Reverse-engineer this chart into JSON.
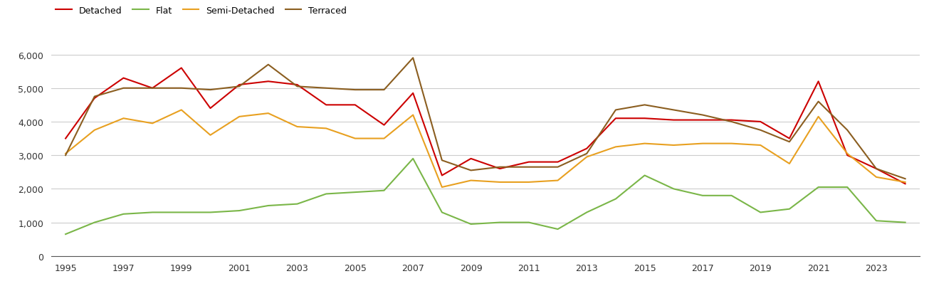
{
  "years": [
    1995,
    1996,
    1997,
    1998,
    1999,
    2000,
    2001,
    2002,
    2003,
    2004,
    2005,
    2006,
    2007,
    2008,
    2009,
    2010,
    2011,
    2012,
    2013,
    2014,
    2015,
    2016,
    2017,
    2018,
    2019,
    2020,
    2021,
    2022,
    2023,
    2024
  ],
  "detached": [
    3500,
    4700,
    5300,
    5000,
    5600,
    4400,
    5100,
    5200,
    5100,
    4500,
    4500,
    3900,
    4850,
    2400,
    2900,
    2600,
    2800,
    2800,
    3200,
    4100,
    4100,
    4050,
    4050,
    4050,
    4000,
    3500,
    5200,
    3000,
    2600,
    2150
  ],
  "flat": [
    650,
    1000,
    1250,
    1300,
    1300,
    1300,
    1350,
    1500,
    1550,
    1850,
    1900,
    1950,
    2900,
    1300,
    950,
    1000,
    1000,
    800,
    1300,
    1700,
    2400,
    2000,
    1800,
    1800,
    1300,
    1400,
    2050,
    2050,
    1050,
    1000
  ],
  "semi_detached": [
    3050,
    3750,
    4100,
    3950,
    4350,
    3600,
    4150,
    4250,
    3850,
    3800,
    3500,
    3500,
    4200,
    2050,
    2250,
    2200,
    2200,
    2250,
    2950,
    3250,
    3350,
    3300,
    3350,
    3350,
    3300,
    2750,
    4150,
    3050,
    2350,
    2200
  ],
  "terraced": [
    3000,
    4750,
    5000,
    5000,
    5000,
    4950,
    5050,
    5700,
    5050,
    5000,
    4950,
    4950,
    5900,
    2850,
    2550,
    2650,
    2650,
    2650,
    3050,
    4350,
    4500,
    4350,
    4200,
    4000,
    3750,
    3400,
    4600,
    3750,
    2600,
    2300
  ],
  "colors": {
    "detached": "#cc0000",
    "flat": "#7ab648",
    "semi_detached": "#e8a020",
    "terraced": "#8b5e20"
  },
  "ylim": [
    0,
    6600
  ],
  "yticks": [
    0,
    1000,
    2000,
    3000,
    4000,
    5000,
    6000
  ],
  "background_color": "#ffffff",
  "grid_color": "#cccccc"
}
